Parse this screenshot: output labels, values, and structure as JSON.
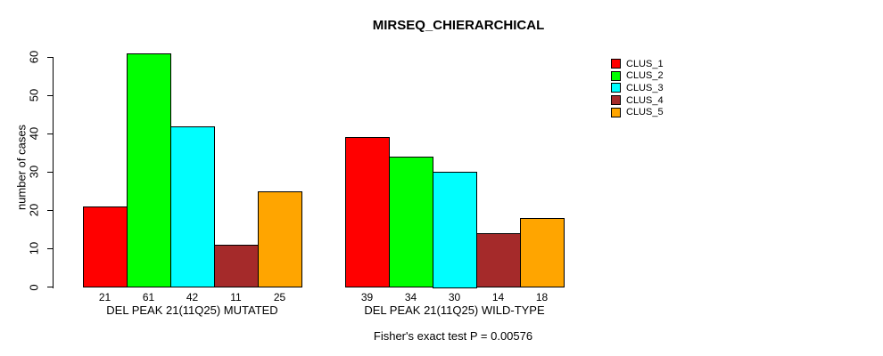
{
  "chart_data": {
    "type": "bar",
    "title": "MIRSEQ_CHIERARCHICAL",
    "ylabel": "number of cases",
    "xlabel": "",
    "ylim": [
      0,
      60
    ],
    "yticks": [
      0,
      10,
      20,
      30,
      40,
      50,
      60
    ],
    "grid": false,
    "legend_position": "top-right",
    "legend": [
      "CLUS_1",
      "CLUS_2",
      "CLUS_3",
      "CLUS_4",
      "CLUS_5"
    ],
    "series_colors": [
      "#ff0000",
      "#00ff00",
      "#00ffff",
      "#a52a2a",
      "#ffa500"
    ],
    "bar_border_color": "#000000",
    "groups": [
      {
        "label": "DEL PEAK 21(11Q25) MUTATED",
        "values": [
          21,
          61,
          42,
          11,
          25
        ]
      },
      {
        "label": "DEL PEAK 21(11Q25) WILD-TYPE",
        "values": [
          39,
          34,
          30,
          14,
          18
        ]
      }
    ],
    "annotation": "Fisher's exact test P = 0.00576",
    "background": "#ffffff"
  }
}
